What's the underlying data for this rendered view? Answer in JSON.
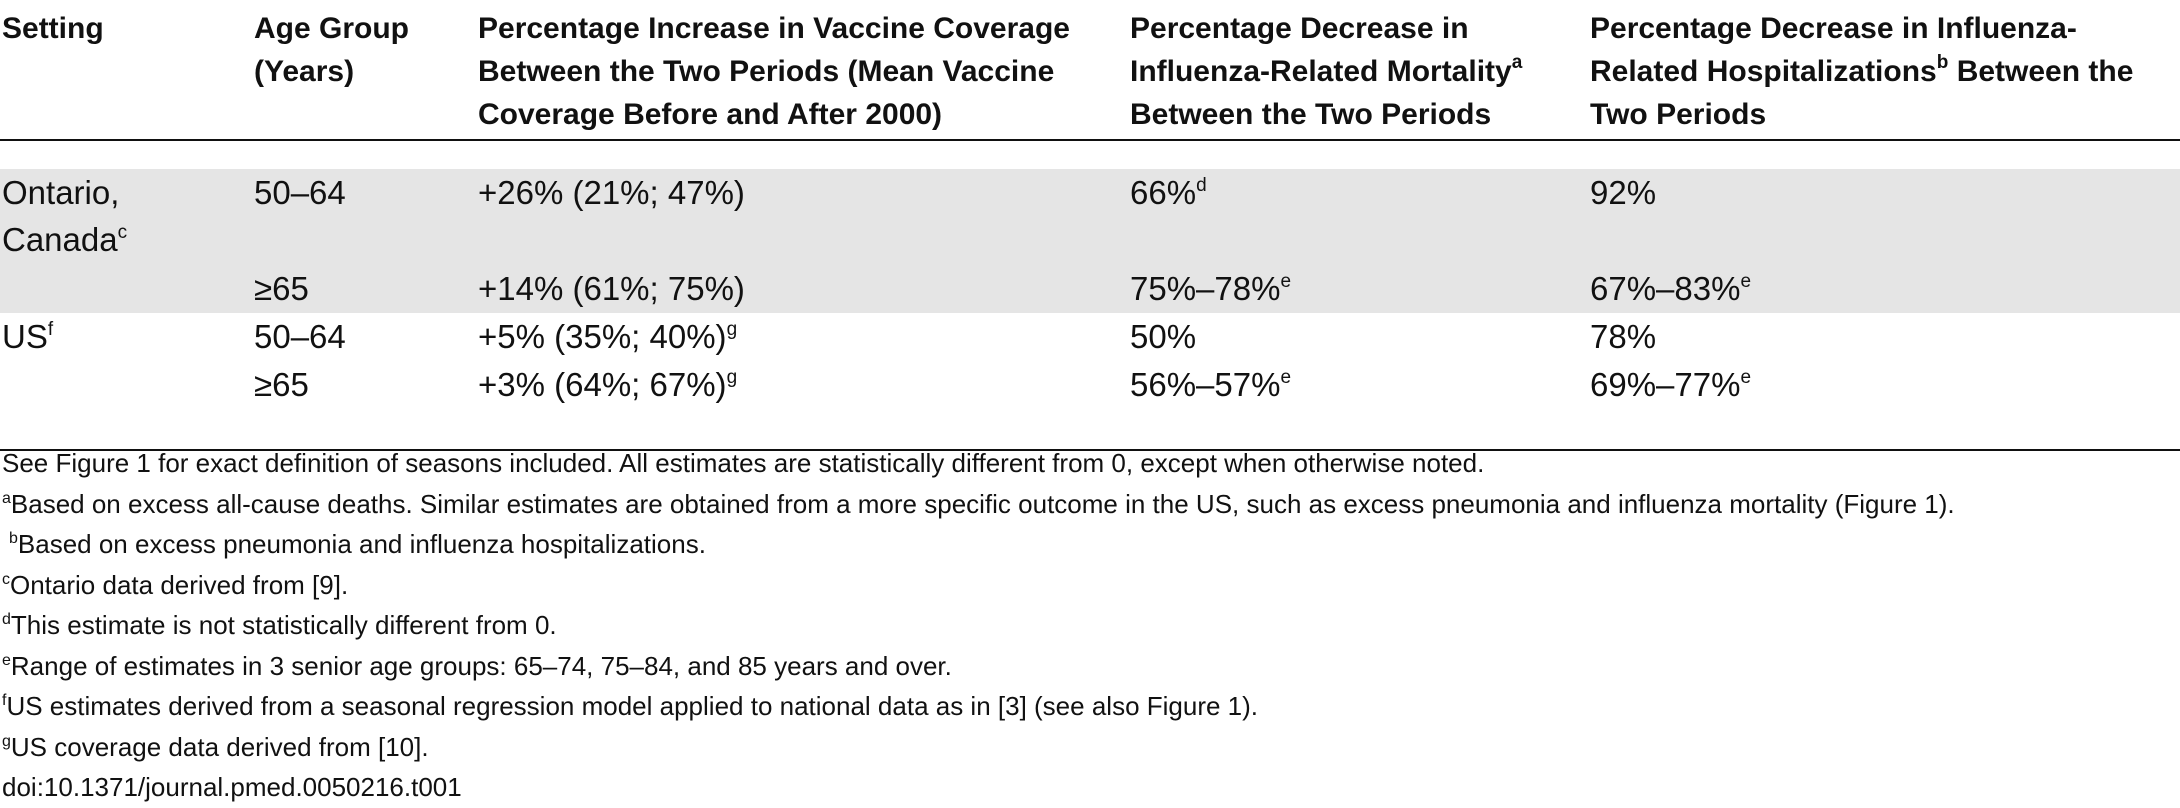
{
  "table": {
    "headers": [
      "Setting",
      "Age Group (Years)",
      "Percentage Increase in Vaccine Coverage Between the Two Periods (Mean Vaccine Coverage Before and After 2000)",
      "Percentage Decrease in Influenza-Related Mortality",
      "Between the Two Periods",
      "Percentage Decrease in Influenza-Related Hospitalizations",
      "Between the Two Periods"
    ],
    "header_sup": {
      "mortality": "a",
      "hospitalizations": "b"
    },
    "rows": [
      {
        "setting": "Ontario, Canada",
        "setting_sup": "c",
        "age": "50–64",
        "coverage": "+26% (21%; 47%)",
        "coverage_sup": "",
        "mortality": "66%",
        "mortality_sup": "d",
        "hosp": "92%",
        "hosp_sup": ""
      },
      {
        "setting": "",
        "setting_sup": "",
        "age": "≥65",
        "coverage": "+14% (61%; 75%)",
        "coverage_sup": "",
        "mortality": "75%–78%",
        "mortality_sup": "e",
        "hosp": "67%–83%",
        "hosp_sup": "e"
      },
      {
        "setting": "US",
        "setting_sup": "f",
        "age": "50–64",
        "coverage": "+5% (35%; 40%)",
        "coverage_sup": "g",
        "mortality": "50%",
        "mortality_sup": "",
        "hosp": "78%",
        "hosp_sup": ""
      },
      {
        "setting": "",
        "setting_sup": "",
        "age": "≥65",
        "coverage": "+3% (64%; 67%)",
        "coverage_sup": "g",
        "mortality": "56%–57%",
        "mortality_sup": "e",
        "hosp": "69%–77%",
        "hosp_sup": "e"
      }
    ]
  },
  "footnotes": {
    "general": "See Figure 1 for exact definition of seasons included. All estimates are statistically different from 0, except when otherwise noted.",
    "items": [
      {
        "mark": "a",
        "text": "Based on excess all-cause deaths. Similar estimates are obtained from a more specific outcome in the US, such as excess pneumonia and influenza mortality (Figure 1)."
      },
      {
        "mark": "b",
        "text": "Based on excess pneumonia and influenza hospitalizations."
      },
      {
        "mark": "c",
        "text": "Ontario data derived from [9]."
      },
      {
        "mark": "d",
        "text": "This estimate is not statistically different from 0."
      },
      {
        "mark": "e",
        "text": "Range of estimates in 3 senior age groups: 65–74, 75–84, and 85 years and over."
      },
      {
        "mark": "f",
        "text": "US estimates derived from a seasonal regression model applied to national data as in [3] (see also Figure 1)."
      },
      {
        "mark": "g",
        "text": "US coverage data derived from [10]."
      }
    ],
    "doi": "doi:10.1371/journal.pmed.0050216.t001"
  }
}
